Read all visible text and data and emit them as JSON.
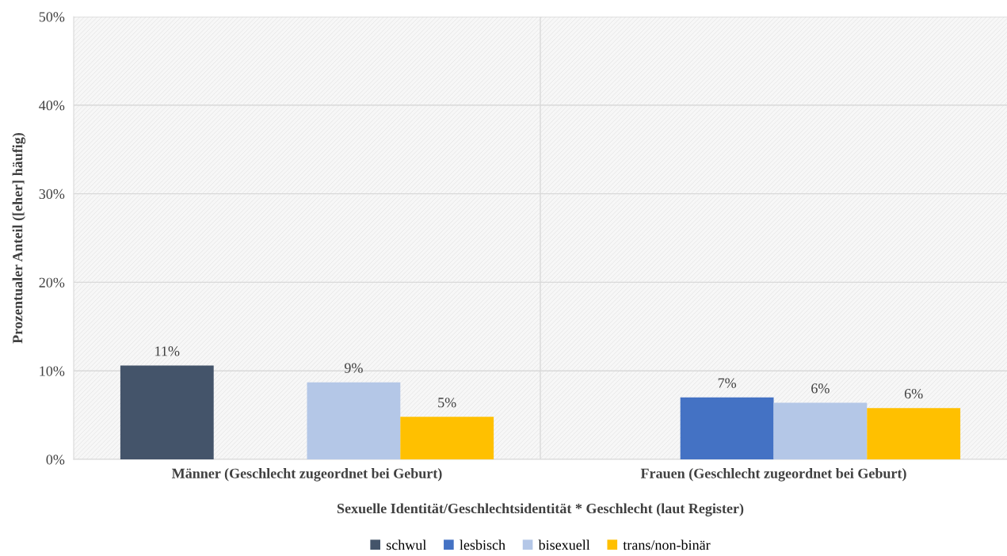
{
  "chart_data": {
    "type": "bar",
    "xlabel": "Sexuelle Identität/Geschlechtsidentität * Geschlecht (laut Register)",
    "ylabel": "Prozentualer Anteil ([eher] häufig)",
    "categories": [
      "Männer (Geschlecht zugeordnet bei Geburt)",
      "Frauen (Geschlecht zugeordnet bei Geburt)"
    ],
    "series": [
      {
        "name": "schwul",
        "color": "#44546a",
        "values": [
          10.6,
          null
        ],
        "value_labels": [
          "11%",
          null
        ]
      },
      {
        "name": "lesbisch",
        "color": "#4472c4",
        "values": [
          null,
          7.0
        ],
        "value_labels": [
          null,
          "7%"
        ]
      },
      {
        "name": "bisexuell",
        "color": "#b4c7e7",
        "values": [
          8.7,
          6.4
        ],
        "value_labels": [
          "9%",
          "6%"
        ]
      },
      {
        "name": "trans/non-binär",
        "color": "#ffc000",
        "values": [
          4.8,
          5.8
        ],
        "value_labels": [
          "5%",
          "6%"
        ]
      }
    ],
    "ylim": [
      0,
      50
    ],
    "yticks": [
      {
        "value": 0,
        "label": "0%"
      },
      {
        "value": 10,
        "label": "10%"
      },
      {
        "value": 20,
        "label": "20%"
      },
      {
        "value": 30,
        "label": "30%"
      },
      {
        "value": 40,
        "label": "40%"
      },
      {
        "value": 50,
        "label": "50%"
      }
    ],
    "grid": true,
    "legend": "bottom"
  }
}
